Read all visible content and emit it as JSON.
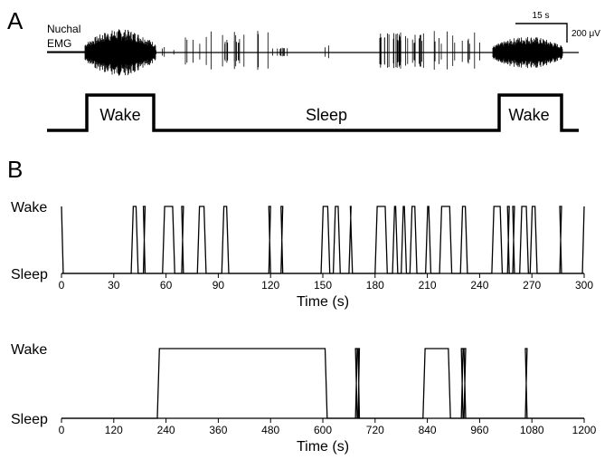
{
  "panel_a": {
    "label": "A",
    "trace_label_line1": "Nuchal",
    "trace_label_line2": "EMG",
    "scale_time": "15 s",
    "scale_amplitude": "200 μV",
    "hypnogram_states": [
      "Wake",
      "Sleep",
      "Wake"
    ]
  },
  "panel_b": {
    "label": "B"
  },
  "chart_data": [
    {
      "type": "line",
      "xlabel": "Time (s)",
      "ylabel": "",
      "xlim": [
        0,
        300
      ],
      "x_ticks": [
        0,
        30,
        60,
        90,
        120,
        150,
        180,
        210,
        240,
        270,
        300
      ],
      "y_categories": [
        "Sleep",
        "Wake"
      ],
      "wake_bouts": [
        [
          0,
          1
        ],
        [
          40,
          44
        ],
        [
          47,
          48
        ],
        [
          58,
          65
        ],
        [
          69,
          70
        ],
        [
          78,
          83
        ],
        [
          92,
          96
        ],
        [
          119,
          120
        ],
        [
          126,
          127
        ],
        [
          149,
          154
        ],
        [
          156,
          160
        ],
        [
          165,
          167
        ],
        [
          180,
          187
        ],
        [
          190,
          193
        ],
        [
          195,
          198
        ],
        [
          200,
          204
        ],
        [
          209,
          212
        ],
        [
          217,
          224
        ],
        [
          229,
          233
        ],
        [
          247,
          253
        ],
        [
          256,
          257
        ],
        [
          259,
          260
        ],
        [
          263,
          268
        ],
        [
          269,
          273
        ],
        [
          286,
          287
        ],
        [
          299,
          300
        ]
      ]
    },
    {
      "type": "line",
      "xlabel": "Time (s)",
      "ylabel": "",
      "xlim": [
        0,
        1200
      ],
      "x_ticks": [
        0,
        120,
        240,
        360,
        480,
        600,
        720,
        840,
        960,
        1080,
        1200
      ],
      "y_categories": [
        "Sleep",
        "Wake"
      ],
      "wake_bouts": [
        [
          220,
          610
        ],
        [
          675,
          679
        ],
        [
          681,
          684
        ],
        [
          830,
          893
        ],
        [
          918,
          922
        ],
        [
          924,
          928
        ],
        [
          1065,
          1069
        ]
      ]
    }
  ]
}
